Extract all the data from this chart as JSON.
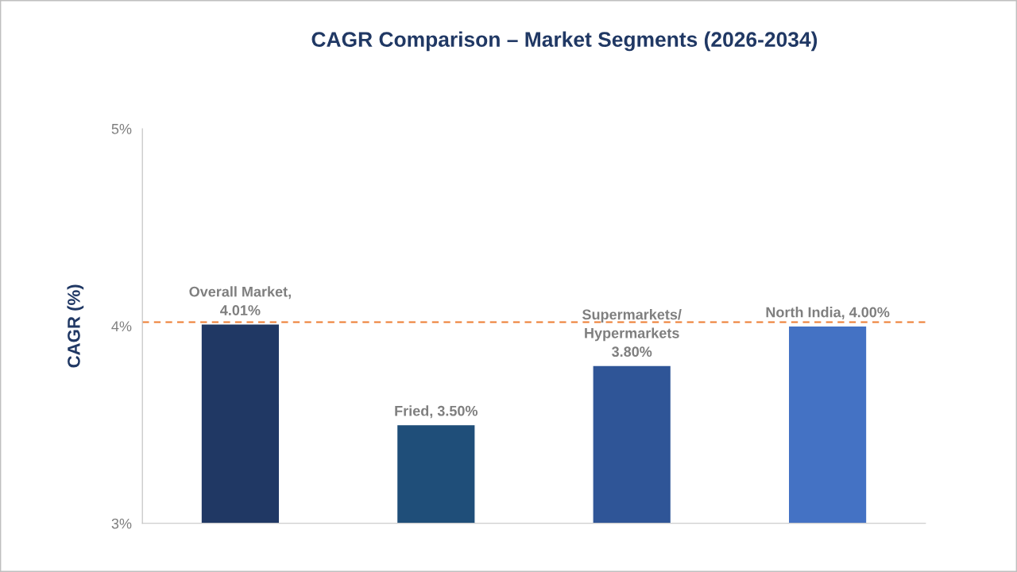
{
  "chart_data": {
    "type": "bar",
    "title": "CAGR Comparison – Market Segments (2026-2034)",
    "ylabel": "CAGR (%)",
    "categories": [
      null,
      null,
      null,
      null
    ],
    "values": [
      4.01,
      3.5,
      3.8,
      4.0
    ],
    "colors": [
      "#203864",
      "#1f4e79",
      "#2f5597",
      "#4472c4"
    ],
    "value_labels": [
      "Overall Market,\n4.01%",
      "Fried, 3.50%",
      "Supermarkets/\nHypermarkets\n3.80%",
      "North India, 4.00%"
    ],
    "ylim": [
      3,
      5
    ],
    "yticks": [
      {
        "value": 3,
        "label": "3%"
      },
      {
        "value": 4,
        "label": "4%"
      },
      {
        "value": 5,
        "label": "5%"
      }
    ],
    "ref_lines": [
      {
        "axis": "y",
        "value": 4.02,
        "label": null,
        "color": "#ed7d31",
        "line_style": "dashed"
      }
    ],
    "grid": false,
    "tick_labels": "y",
    "legend": false
  }
}
